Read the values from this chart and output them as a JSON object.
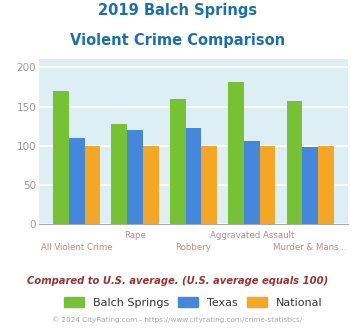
{
  "title_line1": "2019 Balch Springs",
  "title_line2": "Violent Crime Comparison",
  "title_color": "#1a6faf",
  "categories_row1": [
    "",
    "Rape",
    "Aggravated Assault",
    ""
  ],
  "categories_row2": [
    "All Violent Crime",
    "",
    "Robbery",
    "Murder & Mans..."
  ],
  "categories": [
    "All Violent Crime",
    "Rape",
    "Robbery",
    "Aggravated Assault",
    "Murder & Mans..."
  ],
  "balch_springs": [
    170,
    128,
    160,
    181,
    157
  ],
  "texas": [
    110,
    120,
    123,
    106,
    98
  ],
  "national": [
    100,
    100,
    100,
    100,
    100
  ],
  "bar_colors": {
    "balch_springs": "#77c232",
    "texas": "#4488dd",
    "national": "#f5a623"
  },
  "ylim": [
    0,
    210
  ],
  "yticks": [
    0,
    50,
    100,
    150,
    200
  ],
  "background_color": "#ddeef5",
  "grid_color": "#ffffff",
  "legend_labels": [
    "Balch Springs",
    "Texas",
    "National"
  ],
  "subtitle": "Compared to U.S. average. (U.S. average equals 100)",
  "subtitle_color": "#993333",
  "footer": "© 2024 CityRating.com - https://www.cityrating.com/crime-statistics/",
  "footer_color": "#aaaaaa",
  "tick_label_color": "#999999",
  "label_color_row1": "#bb8888",
  "label_color_row2": "#bb8888"
}
